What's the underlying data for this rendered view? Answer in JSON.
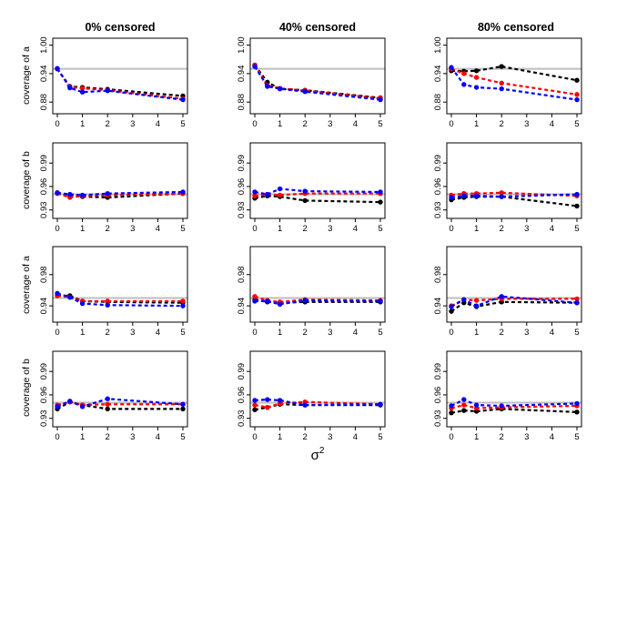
{
  "figure": {
    "column_titles": [
      "0% censored",
      "40% censored",
      "80% censored"
    ],
    "row_ylabels": [
      "coverage of a",
      "coverage of b",
      "coverage of a",
      "coverage of b"
    ],
    "xlabel_base": "σ",
    "xlabel_sup": "2",
    "reference_line": 0.95,
    "colors": {
      "black": "#000000",
      "red": "#ff0000",
      "blue": "#0000ff",
      "reference": "#bebebe",
      "frame": "#000000"
    }
  },
  "chart_data": [
    {
      "type": "line",
      "row": 0,
      "col": 0,
      "title": "0% censored",
      "xlabel": "",
      "ylabel": "coverage of a",
      "xlim": [
        0,
        5
      ],
      "ylim": [
        0.865,
        1.005
      ],
      "x_ticks": [
        "0",
        "1",
        "2",
        "3",
        "4",
        "5"
      ],
      "y_ticks": [
        "0.88",
        "0.94",
        "1.00"
      ],
      "x": [
        0,
        0.5,
        1,
        2,
        5
      ],
      "series": [
        {
          "name": "black",
          "values": [
            0.95,
            0.913,
            0.911,
            0.907,
            0.893
          ]
        },
        {
          "name": "red",
          "values": [
            0.95,
            0.912,
            0.909,
            0.905,
            0.887
          ]
        },
        {
          "name": "blue",
          "values": [
            0.951,
            0.91,
            0.901,
            0.904,
            0.885
          ]
        }
      ]
    },
    {
      "type": "line",
      "row": 0,
      "col": 1,
      "title": "40% censored",
      "xlabel": "",
      "ylabel": "",
      "xlim": [
        0,
        5
      ],
      "ylim": [
        0.865,
        1.005
      ],
      "x_ticks": [
        "0",
        "1",
        "2",
        "3",
        "4",
        "5"
      ],
      "y_ticks": [
        "0.88",
        "0.94",
        "1.00"
      ],
      "x": [
        0,
        0.5,
        1,
        2,
        5
      ],
      "series": [
        {
          "name": "black",
          "values": [
            0.958,
            0.922,
            0.908,
            0.905,
            0.889
          ]
        },
        {
          "name": "red",
          "values": [
            0.958,
            0.915,
            0.909,
            0.904,
            0.888
          ]
        },
        {
          "name": "blue",
          "values": [
            0.955,
            0.913,
            0.908,
            0.902,
            0.885
          ]
        }
      ]
    },
    {
      "type": "line",
      "row": 0,
      "col": 2,
      "title": "80% censored",
      "xlabel": "",
      "ylabel": "",
      "xlim": [
        0,
        5
      ],
      "ylim": [
        0.865,
        1.005
      ],
      "x_ticks": [
        "0",
        "1",
        "2",
        "3",
        "4",
        "5"
      ],
      "y_ticks": [
        "0.88",
        "0.94",
        "1.00"
      ],
      "x": [
        0,
        0.5,
        1,
        2,
        5
      ],
      "series": [
        {
          "name": "black",
          "values": [
            0.946,
            0.945,
            0.946,
            0.955,
            0.926
          ]
        },
        {
          "name": "red",
          "values": [
            0.95,
            0.94,
            0.932,
            0.92,
            0.896
          ]
        },
        {
          "name": "blue",
          "values": [
            0.953,
            0.917,
            0.911,
            0.908,
            0.885
          ]
        }
      ]
    },
    {
      "type": "line",
      "row": 1,
      "col": 0,
      "title": "",
      "xlabel": "",
      "ylabel": "coverage of b",
      "xlim": [
        0,
        5
      ],
      "ylim": [
        0.925,
        1.01
      ],
      "x_ticks": [
        "0",
        "1",
        "2",
        "3",
        "4",
        "5"
      ],
      "y_ticks": [
        "0.93",
        "0.96",
        "0.99"
      ],
      "x": [
        0,
        0.5,
        1,
        2,
        5
      ],
      "series": [
        {
          "name": "black",
          "values": [
            0.952,
            0.948,
            0.947,
            0.946,
            0.951
          ]
        },
        {
          "name": "red",
          "values": [
            0.951,
            0.946,
            0.948,
            0.949,
            0.951
          ]
        },
        {
          "name": "blue",
          "values": [
            0.952,
            0.95,
            0.949,
            0.951,
            0.953
          ]
        }
      ]
    },
    {
      "type": "line",
      "row": 1,
      "col": 1,
      "title": "",
      "xlabel": "",
      "ylabel": "",
      "xlim": [
        0,
        5
      ],
      "ylim": [
        0.925,
        1.01
      ],
      "x_ticks": [
        "0",
        "1",
        "2",
        "3",
        "4",
        "5"
      ],
      "y_ticks": [
        "0.93",
        "0.96",
        "0.99"
      ],
      "x": [
        0,
        0.5,
        1,
        2,
        5
      ],
      "series": [
        {
          "name": "black",
          "values": [
            0.945,
            0.948,
            0.947,
            0.942,
            0.94
          ]
        },
        {
          "name": "red",
          "values": [
            0.948,
            0.95,
            0.949,
            0.951,
            0.951
          ]
        },
        {
          "name": "blue",
          "values": [
            0.953,
            0.95,
            0.957,
            0.954,
            0.953
          ]
        }
      ]
    },
    {
      "type": "line",
      "row": 1,
      "col": 2,
      "title": "",
      "xlabel": "",
      "ylabel": "",
      "xlim": [
        0,
        5
      ],
      "ylim": [
        0.925,
        1.01
      ],
      "x_ticks": [
        "0",
        "1",
        "2",
        "3",
        "4",
        "5"
      ],
      "y_ticks": [
        "0.93",
        "0.96",
        "0.99"
      ],
      "x": [
        0,
        0.5,
        1,
        2,
        5
      ],
      "series": [
        {
          "name": "black",
          "values": [
            0.943,
            0.946,
            0.947,
            0.947,
            0.935
          ]
        },
        {
          "name": "red",
          "values": [
            0.949,
            0.951,
            0.951,
            0.952,
            0.948
          ]
        },
        {
          "name": "blue",
          "values": [
            0.946,
            0.948,
            0.948,
            0.947,
            0.95
          ]
        }
      ]
    },
    {
      "type": "line",
      "row": 2,
      "col": 0,
      "title": "",
      "xlabel": "",
      "ylabel": "coverage of a",
      "xlim": [
        0,
        5
      ],
      "ylim": [
        0.925,
        1.01
      ],
      "x_ticks": [
        "0",
        "1",
        "2",
        "3",
        "4",
        "5"
      ],
      "y_ticks": [
        "0.94",
        "0.98"
      ],
      "x": [
        0,
        0.5,
        1,
        2,
        5
      ],
      "series": [
        {
          "name": "black",
          "values": [
            0.953,
            0.953,
            0.946,
            0.945,
            0.944
          ]
        },
        {
          "name": "red",
          "values": [
            0.953,
            0.951,
            0.946,
            0.946,
            0.946
          ]
        },
        {
          "name": "blue",
          "values": [
            0.956,
            0.951,
            0.943,
            0.941,
            0.94
          ]
        }
      ]
    },
    {
      "type": "line",
      "row": 2,
      "col": 1,
      "title": "",
      "xlabel": "",
      "ylabel": "",
      "xlim": [
        0,
        5
      ],
      "ylim": [
        0.925,
        1.01
      ],
      "x_ticks": [
        "0",
        "1",
        "2",
        "3",
        "4",
        "5"
      ],
      "y_ticks": [
        "0.94",
        "0.98"
      ],
      "x": [
        0,
        0.5,
        1,
        2,
        5
      ],
      "series": [
        {
          "name": "black",
          "values": [
            0.948,
            0.945,
            0.944,
            0.945,
            0.945
          ]
        },
        {
          "name": "red",
          "values": [
            0.952,
            0.947,
            0.945,
            0.948,
            0.947
          ]
        },
        {
          "name": "blue",
          "values": [
            0.946,
            0.946,
            0.942,
            0.947,
            0.946
          ]
        }
      ]
    },
    {
      "type": "line",
      "row": 2,
      "col": 2,
      "title": "",
      "xlabel": "",
      "ylabel": "",
      "xlim": [
        0,
        5
      ],
      "ylim": [
        0.925,
        1.01
      ],
      "x_ticks": [
        "0",
        "1",
        "2",
        "3",
        "4",
        "5"
      ],
      "y_ticks": [
        "0.94",
        "0.98"
      ],
      "x": [
        0,
        0.5,
        1,
        2,
        5
      ],
      "series": [
        {
          "name": "black",
          "values": [
            0.933,
            0.944,
            0.939,
            0.945,
            0.944
          ]
        },
        {
          "name": "red",
          "values": [
            0.94,
            0.948,
            0.947,
            0.949,
            0.949
          ]
        },
        {
          "name": "blue",
          "values": [
            0.939,
            0.948,
            0.94,
            0.952,
            0.944
          ]
        }
      ]
    },
    {
      "type": "line",
      "row": 3,
      "col": 0,
      "title": "",
      "xlabel": "",
      "ylabel": "coverage of b",
      "xlim": [
        0,
        5
      ],
      "ylim": [
        0.925,
        1.01
      ],
      "x_ticks": [
        "0",
        "1",
        "2",
        "3",
        "4",
        "5"
      ],
      "y_ticks": [
        "0.93",
        "0.96",
        "0.99"
      ],
      "x": [
        0,
        0.5,
        1,
        2,
        5
      ],
      "series": [
        {
          "name": "black",
          "values": [
            0.942,
            0.951,
            0.947,
            0.942,
            0.942
          ]
        },
        {
          "name": "red",
          "values": [
            0.947,
            0.951,
            0.947,
            0.948,
            0.948
          ]
        },
        {
          "name": "blue",
          "values": [
            0.945,
            0.952,
            0.945,
            0.955,
            0.948
          ]
        }
      ]
    },
    {
      "type": "line",
      "row": 3,
      "col": 1,
      "title": "",
      "xlabel": "",
      "ylabel": "",
      "xlim": [
        0,
        5
      ],
      "ylim": [
        0.925,
        1.01
      ],
      "x_ticks": [
        "0",
        "1",
        "2",
        "3",
        "4",
        "5"
      ],
      "y_ticks": [
        "0.93",
        "0.96",
        "0.99"
      ],
      "x": [
        0,
        0.5,
        1,
        2,
        5
      ],
      "series": [
        {
          "name": "black",
          "values": [
            0.941,
            0.944,
            0.948,
            0.947,
            0.947
          ]
        },
        {
          "name": "red",
          "values": [
            0.947,
            0.944,
            0.949,
            0.951,
            0.948
          ]
        },
        {
          "name": "blue",
          "values": [
            0.953,
            0.954,
            0.953,
            0.947,
            0.948
          ]
        }
      ]
    },
    {
      "type": "line",
      "row": 3,
      "col": 2,
      "title": "",
      "xlabel": "",
      "ylabel": "",
      "xlim": [
        0,
        5
      ],
      "ylim": [
        0.925,
        1.01
      ],
      "x_ticks": [
        "0",
        "1",
        "2",
        "3",
        "4",
        "5"
      ],
      "y_ticks": [
        "0.93",
        "0.96",
        "0.99"
      ],
      "x": [
        0,
        0.5,
        1,
        2,
        5
      ],
      "series": [
        {
          "name": "black",
          "values": [
            0.937,
            0.94,
            0.939,
            0.942,
            0.938
          ]
        },
        {
          "name": "red",
          "values": [
            0.943,
            0.947,
            0.943,
            0.944,
            0.946
          ]
        },
        {
          "name": "blue",
          "values": [
            0.946,
            0.954,
            0.947,
            0.946,
            0.949
          ]
        }
      ]
    }
  ]
}
